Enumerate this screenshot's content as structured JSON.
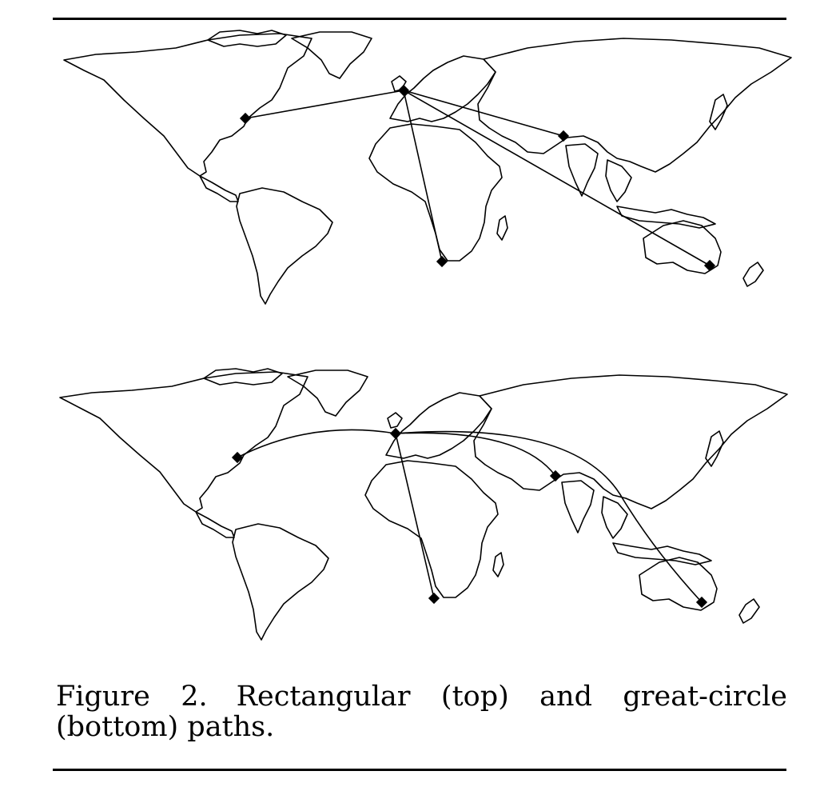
{
  "figure": {
    "label": "Figure 2.",
    "caption": "Rectangular (top) and great-circle (bottom) paths."
  },
  "maps": [
    {
      "name": "rectangular",
      "route_style": "straight"
    },
    {
      "name": "great-circle",
      "route_style": "curved"
    }
  ],
  "colors": {
    "ink": "#000000",
    "paper": "#ffffff"
  }
}
